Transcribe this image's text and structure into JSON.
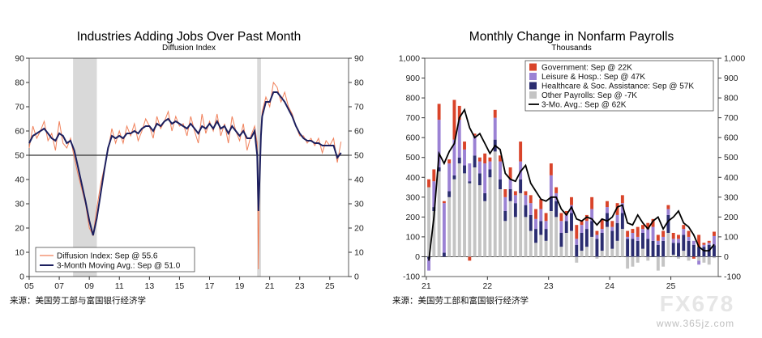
{
  "chart_data": [
    {
      "type": "line",
      "title": "Industries Adding Jobs Over Past Month",
      "subtitle": "Diffusion Index",
      "x_tick_labels": [
        "05",
        "07",
        "09",
        "11",
        "13",
        "15",
        "17",
        "19",
        "21",
        "23",
        "25"
      ],
      "y_ticks": [
        0,
        10,
        20,
        30,
        40,
        50,
        60,
        70,
        80,
        90
      ],
      "ylim": [
        0,
        90
      ],
      "xlim": [
        2005.0,
        2026.25
      ],
      "recessions": [
        [
          2007.92,
          2009.5
        ],
        [
          2020.17,
          2020.42
        ]
      ],
      "reference_line": 50,
      "series": [
        {
          "name": "Diffusion Index: Sep @ 55.6",
          "color": "#f0805a",
          "x": [
            2005.0,
            2005.25,
            2005.5,
            2005.75,
            2006.0,
            2006.25,
            2006.5,
            2006.75,
            2007.0,
            2007.25,
            2007.5,
            2007.75,
            2008.0,
            2008.25,
            2008.5,
            2008.75,
            2009.0,
            2009.25,
            2009.5,
            2009.75,
            2010.0,
            2010.25,
            2010.5,
            2010.75,
            2011.0,
            2011.25,
            2011.5,
            2011.75,
            2012.0,
            2012.25,
            2012.5,
            2012.75,
            2013.0,
            2013.25,
            2013.5,
            2013.75,
            2014.0,
            2014.25,
            2014.5,
            2014.75,
            2015.0,
            2015.25,
            2015.5,
            2015.75,
            2016.0,
            2016.25,
            2016.5,
            2016.75,
            2017.0,
            2017.25,
            2017.5,
            2017.75,
            2018.0,
            2018.25,
            2018.5,
            2018.75,
            2019.0,
            2019.25,
            2019.5,
            2019.75,
            2020.0,
            2020.17,
            2020.25,
            2020.33,
            2020.42,
            2020.5,
            2020.75,
            2021.0,
            2021.25,
            2021.5,
            2021.75,
            2022.0,
            2022.25,
            2022.5,
            2022.75,
            2023.0,
            2023.25,
            2023.5,
            2023.75,
            2024.0,
            2024.25,
            2024.5,
            2024.75,
            2025.0,
            2025.25,
            2025.5,
            2025.75
          ],
          "y": [
            53,
            62,
            57,
            60,
            64,
            56,
            59,
            52,
            64,
            55,
            53,
            57,
            49,
            42,
            36,
            30,
            20,
            17,
            28,
            38,
            45,
            52,
            61,
            55,
            60,
            55,
            62,
            58,
            63,
            56,
            60,
            65,
            62,
            57,
            66,
            61,
            64,
            68,
            60,
            66,
            62,
            63,
            58,
            66,
            60,
            55,
            67,
            59,
            64,
            60,
            67,
            58,
            63,
            55,
            66,
            60,
            56,
            63,
            52,
            58,
            62,
            55,
            3,
            45,
            60,
            68,
            74,
            70,
            80,
            78,
            72,
            76,
            70,
            67,
            62,
            58,
            58,
            55,
            57,
            54,
            57,
            51,
            56,
            54,
            57,
            47,
            55.6
          ]
        },
        {
          "name": "3-Month Moving Avg.: Sep @ 51.0",
          "color": "#1c1f5e",
          "x": [
            2005.0,
            2005.25,
            2005.5,
            2005.75,
            2006.0,
            2006.25,
            2006.5,
            2006.75,
            2007.0,
            2007.25,
            2007.5,
            2007.75,
            2008.0,
            2008.25,
            2008.5,
            2008.75,
            2009.0,
            2009.25,
            2009.5,
            2009.75,
            2010.0,
            2010.25,
            2010.5,
            2010.75,
            2011.0,
            2011.25,
            2011.5,
            2011.75,
            2012.0,
            2012.25,
            2012.5,
            2012.75,
            2013.0,
            2013.25,
            2013.5,
            2013.75,
            2014.0,
            2014.25,
            2014.5,
            2014.75,
            2015.0,
            2015.25,
            2015.5,
            2015.75,
            2016.0,
            2016.25,
            2016.5,
            2016.75,
            2017.0,
            2017.25,
            2017.5,
            2017.75,
            2018.0,
            2018.25,
            2018.5,
            2018.75,
            2019.0,
            2019.25,
            2019.5,
            2019.75,
            2020.0,
            2020.17,
            2020.25,
            2020.33,
            2020.42,
            2020.5,
            2020.75,
            2021.0,
            2021.25,
            2021.5,
            2021.75,
            2022.0,
            2022.25,
            2022.5,
            2022.75,
            2023.0,
            2023.25,
            2023.5,
            2023.75,
            2024.0,
            2024.25,
            2024.5,
            2024.75,
            2025.0,
            2025.25,
            2025.5,
            2025.75
          ],
          "y": [
            55,
            58,
            59,
            60,
            61,
            59,
            57,
            56,
            59,
            58,
            55,
            56,
            52,
            45,
            38,
            31,
            23,
            17,
            24,
            34,
            44,
            53,
            58,
            57,
            58,
            57,
            59,
            59,
            60,
            59,
            61,
            62,
            62,
            60,
            63,
            62,
            64,
            65,
            63,
            64,
            63,
            62,
            61,
            63,
            61,
            59,
            62,
            61,
            63,
            61,
            64,
            61,
            62,
            59,
            62,
            60,
            58,
            60,
            57,
            57,
            60,
            50,
            27,
            40,
            58,
            66,
            72,
            72,
            76,
            76,
            74,
            72,
            69,
            66,
            62,
            59,
            57,
            56,
            56,
            55,
            55,
            54,
            54,
            54,
            54,
            49,
            51.0
          ]
        }
      ],
      "legend_position": "bottom-left",
      "source": "来源：美国劳工部与富国银行经济学"
    },
    {
      "type": "bar",
      "title": "Monthly Change in Nonfarm Payrolls",
      "subtitle": "Thousands",
      "x_tick_labels": [
        "21",
        "22",
        "23",
        "24",
        "25"
      ],
      "y_ticks": [
        -100,
        0,
        100,
        200,
        300,
        400,
        500,
        600,
        700,
        800,
        900,
        1000
      ],
      "ylim": [
        -100,
        1000
      ],
      "stacked": true,
      "months": [
        "2021-01",
        "2021-02",
        "2021-03",
        "2021-04",
        "2021-05",
        "2021-06",
        "2021-07",
        "2021-08",
        "2021-09",
        "2021-10",
        "2021-11",
        "2021-12",
        "2022-01",
        "2022-02",
        "2022-03",
        "2022-04",
        "2022-05",
        "2022-06",
        "2022-07",
        "2022-08",
        "2022-09",
        "2022-10",
        "2022-11",
        "2022-12",
        "2023-01",
        "2023-02",
        "2023-03",
        "2023-04",
        "2023-05",
        "2023-06",
        "2023-07",
        "2023-08",
        "2023-09",
        "2023-10",
        "2023-11",
        "2023-12",
        "2024-01",
        "2024-02",
        "2024-03",
        "2024-04",
        "2024-05",
        "2024-06",
        "2024-07",
        "2024-08",
        "2024-09",
        "2024-10",
        "2024-11",
        "2024-12",
        "2025-01",
        "2025-02",
        "2025-03",
        "2025-04",
        "2025-05",
        "2025-06",
        "2025-07",
        "2025-08",
        "2025-09"
      ],
      "series": [
        {
          "name": "Government: Sep @ 22K",
          "color": "#d9442a",
          "values": [
            40,
            60,
            80,
            10,
            20,
            200,
            70,
            40,
            -20,
            10,
            20,
            50,
            20,
            40,
            30,
            40,
            60,
            20,
            100,
            20,
            40,
            50,
            50,
            40,
            60,
            30,
            40,
            20,
            40,
            70,
            20,
            30,
            60,
            20,
            50,
            30,
            30,
            60,
            40,
            30,
            20,
            50,
            20,
            30,
            40,
            30,
            30,
            20,
            30,
            20,
            20,
            30,
            -10,
            60,
            10,
            10,
            22
          ]
        },
        {
          "name": "Leisure & Hosp.: Sep @ 47K",
          "color": "#9b82d4",
          "values": [
            -60,
            130,
            240,
            250,
            140,
            180,
            190,
            80,
            90,
            100,
            60,
            150,
            40,
            110,
            90,
            70,
            50,
            40,
            90,
            50,
            60,
            50,
            60,
            40,
            110,
            40,
            60,
            30,
            40,
            30,
            40,
            40,
            60,
            20,
            20,
            30,
            20,
            40,
            50,
            10,
            30,
            20,
            20,
            50,
            70,
            20,
            20,
            30,
            20,
            20,
            30,
            20,
            20,
            -20,
            10,
            10,
            47
          ]
        },
        {
          "name": "Healthcare & Soc. Assistance: Sep @ 57K",
          "color": "#2b2d70",
          "values": [
            -10,
            20,
            20,
            20,
            30,
            20,
            30,
            40,
            10,
            60,
            60,
            40,
            40,
            60,
            50,
            50,
            60,
            70,
            70,
            60,
            80,
            70,
            70,
            60,
            70,
            80,
            70,
            60,
            90,
            60,
            90,
            90,
            80,
            90,
            90,
            70,
            90,
            90,
            80,
            90,
            90,
            80,
            80,
            90,
            80,
            60,
            80,
            90,
            60,
            70,
            80,
            80,
            60,
            50,
            50,
            60,
            57
          ]
        },
        {
          "name": "Other Payrolls: Sep @ -7K",
          "color": "#c4c4c4",
          "values": [
            350,
            230,
            430,
            0,
            300,
            390,
            470,
            420,
            370,
            450,
            360,
            280,
            400,
            530,
            340,
            180,
            280,
            200,
            320,
            200,
            130,
            70,
            110,
            80,
            230,
            200,
            50,
            120,
            130,
            -30,
            30,
            50,
            100,
            -10,
            30,
            150,
            40,
            80,
            140,
            -60,
            -50,
            -30,
            40,
            -20,
            0,
            -70,
            -50,
            120,
            10,
            -10,
            30,
            -20,
            0,
            -20,
            -30,
            -40,
            -7
          ]
        },
        {
          "name": "3-Mo. Avg.: Sep @ 62K",
          "color": "#000000",
          "type": "line",
          "values": [
            -20,
            200,
            520,
            470,
            530,
            570,
            700,
            740,
            650,
            600,
            620,
            570,
            520,
            560,
            540,
            420,
            390,
            380,
            430,
            460,
            370,
            330,
            290,
            280,
            300,
            300,
            240,
            210,
            250,
            190,
            180,
            200,
            190,
            160,
            190,
            180,
            200,
            250,
            260,
            170,
            160,
            210,
            170,
            140,
            180,
            200,
            140,
            180,
            200,
            230,
            170,
            150,
            110,
            50,
            30,
            30,
            62
          ]
        }
      ],
      "legend_position": "top-right",
      "source": "来源：美国劳工部和富国银行经济学"
    }
  ],
  "watermark": {
    "brand": "FX678",
    "url": "www.365jz.com"
  }
}
